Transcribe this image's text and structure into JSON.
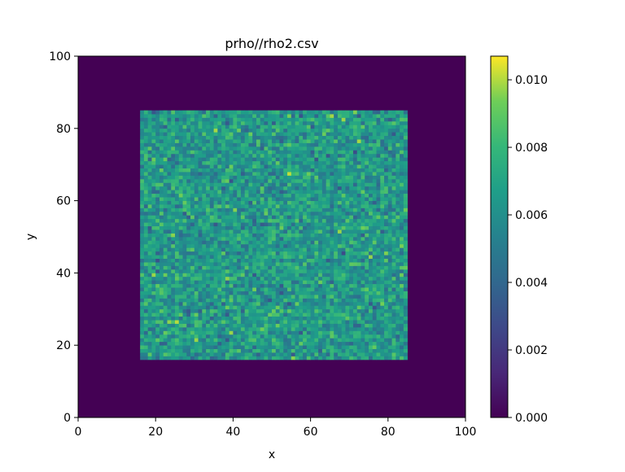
{
  "chart_data": {
    "type": "heatmap",
    "title": "prho//rho2.csv",
    "xlabel": "x",
    "ylabel": "y",
    "xlim": [
      0,
      100
    ],
    "ylim": [
      0,
      100
    ],
    "xticks": [
      "0",
      "20",
      "40",
      "60",
      "80",
      "100"
    ],
    "yticks": [
      "0",
      "20",
      "40",
      "60",
      "80",
      "100"
    ],
    "colormap": "viridis",
    "colorbar": {
      "range": [
        0.0,
        0.0107
      ],
      "ticks": [
        "0.000",
        "0.002",
        "0.004",
        "0.006",
        "0.008",
        "0.010"
      ]
    },
    "grid_size": [
      100,
      100
    ],
    "background_value": 0.0,
    "active_region": {
      "x_range": [
        16,
        85
      ],
      "y_range": [
        16,
        85
      ]
    },
    "active_value_mean": 0.0065,
    "active_value_spread": 0.0022,
    "random_seed": 20240517
  }
}
